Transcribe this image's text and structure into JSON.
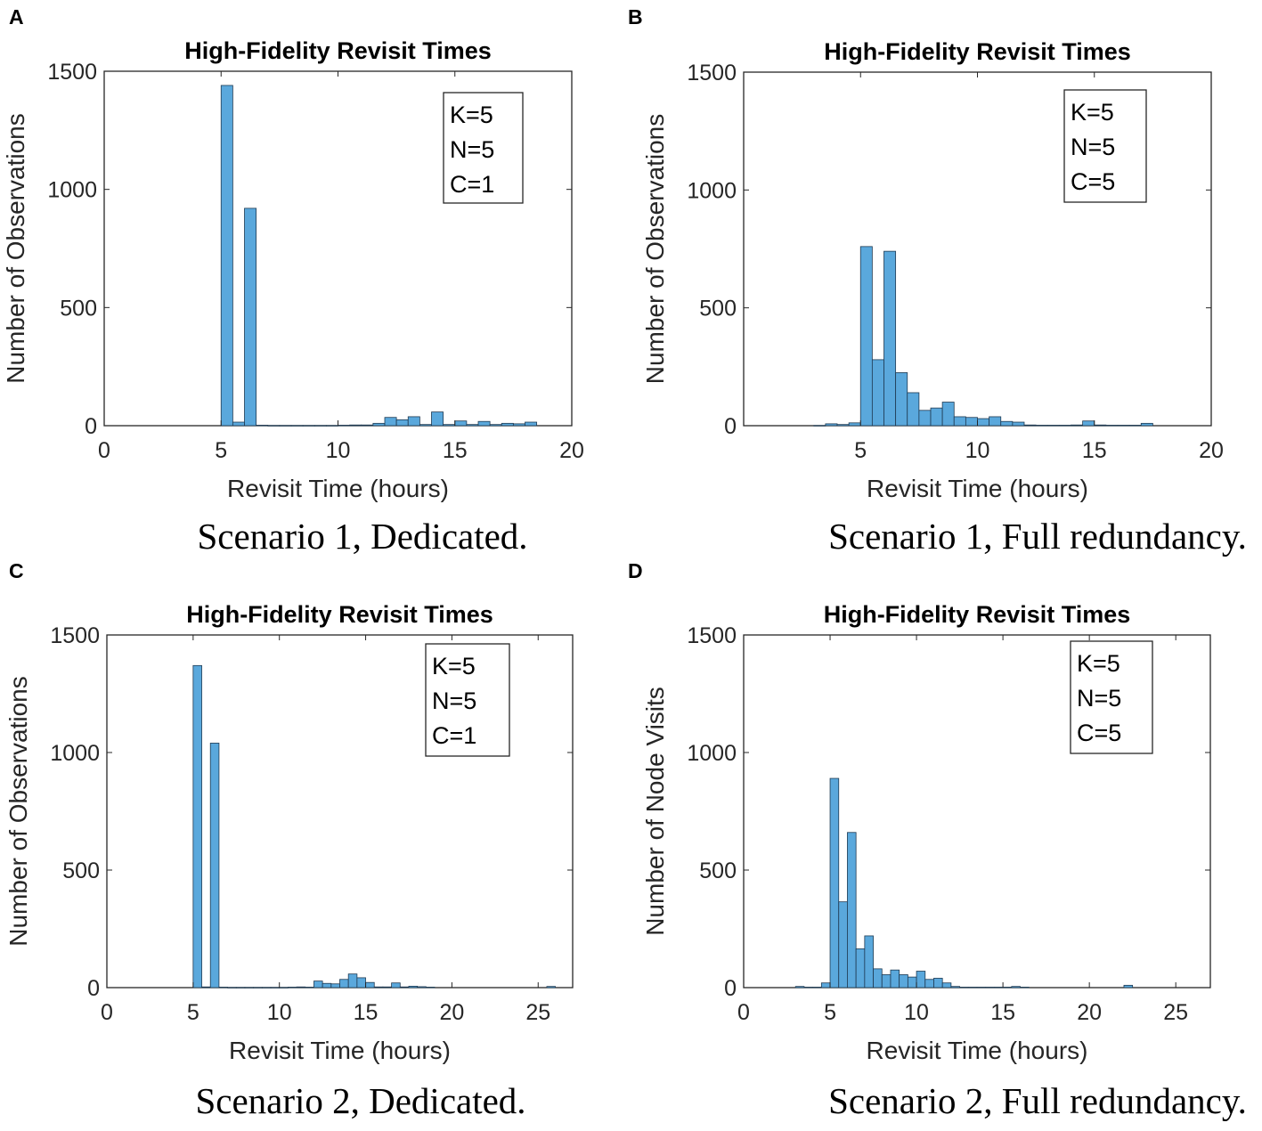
{
  "figure": {
    "panels": [
      {
        "letter": "A",
        "caption": "Scenario 1, Dedicated."
      },
      {
        "letter": "B",
        "caption": "Scenario 1, Full redundancy."
      },
      {
        "letter": "C",
        "caption": "Scenario 2, Dedicated."
      },
      {
        "letter": "D",
        "caption": "Scenario 2, Full redundancy."
      }
    ]
  },
  "colors": {
    "bar_fill": "#5aa8dc",
    "bar_edge": "#1f3a52",
    "axis": "#262626"
  },
  "chart_data": [
    {
      "type": "bar",
      "title": "High-Fidelity Revisit Times",
      "xlabel": "Revisit Time (hours)",
      "ylabel": "Number of Observations",
      "xlim": [
        0,
        20
      ],
      "ylim": [
        0,
        1500
      ],
      "xticks": [
        0,
        5,
        10,
        15,
        20
      ],
      "yticks": [
        0,
        500,
        1000,
        1500
      ],
      "legend": [
        "K=5",
        "N=5",
        "C=1"
      ],
      "legend_position": "top-right",
      "bin_width": 0.5,
      "bins": [
        {
          "x0": 5.0,
          "value": 1440
        },
        {
          "x0": 5.5,
          "value": 15
        },
        {
          "x0": 6.0,
          "value": 920
        },
        {
          "x0": 6.5,
          "value": 2
        },
        {
          "x0": 7.0,
          "value": 1
        },
        {
          "x0": 7.5,
          "value": 1
        },
        {
          "x0": 8.0,
          "value": 1
        },
        {
          "x0": 8.5,
          "value": 1
        },
        {
          "x0": 9.0,
          "value": 1
        },
        {
          "x0": 9.5,
          "value": 1
        },
        {
          "x0": 10.0,
          "value": 2
        },
        {
          "x0": 10.5,
          "value": 3
        },
        {
          "x0": 11.0,
          "value": 3
        },
        {
          "x0": 11.5,
          "value": 10
        },
        {
          "x0": 12.0,
          "value": 35
        },
        {
          "x0": 12.5,
          "value": 25
        },
        {
          "x0": 13.0,
          "value": 38
        },
        {
          "x0": 13.5,
          "value": 5
        },
        {
          "x0": 14.0,
          "value": 58
        },
        {
          "x0": 14.5,
          "value": 5
        },
        {
          "x0": 15.0,
          "value": 20
        },
        {
          "x0": 15.5,
          "value": 5
        },
        {
          "x0": 16.0,
          "value": 18
        },
        {
          "x0": 16.5,
          "value": 5
        },
        {
          "x0": 17.0,
          "value": 10
        },
        {
          "x0": 17.5,
          "value": 8
        },
        {
          "x0": 18.0,
          "value": 15
        }
      ]
    },
    {
      "type": "bar",
      "title": "High-Fidelity Revisit Times",
      "xlabel": "Revisit Time (hours)",
      "ylabel": "Number of Observations",
      "xlim": [
        0,
        20
      ],
      "ylim": [
        0,
        1500
      ],
      "xticks": [
        5,
        10,
        15,
        20
      ],
      "yticks": [
        0,
        500,
        1000,
        1500
      ],
      "legend": [
        "K=5",
        "N=5",
        "C=5"
      ],
      "legend_position": "top-right",
      "bin_width": 0.5,
      "bins": [
        {
          "x0": 3.0,
          "value": 1
        },
        {
          "x0": 3.5,
          "value": 8
        },
        {
          "x0": 4.0,
          "value": 5
        },
        {
          "x0": 4.5,
          "value": 12
        },
        {
          "x0": 5.0,
          "value": 760
        },
        {
          "x0": 5.5,
          "value": 280
        },
        {
          "x0": 6.0,
          "value": 740
        },
        {
          "x0": 6.5,
          "value": 225
        },
        {
          "x0": 7.0,
          "value": 140
        },
        {
          "x0": 7.5,
          "value": 65
        },
        {
          "x0": 8.0,
          "value": 75
        },
        {
          "x0": 8.5,
          "value": 100
        },
        {
          "x0": 9.0,
          "value": 38
        },
        {
          "x0": 9.5,
          "value": 35
        },
        {
          "x0": 10.0,
          "value": 30
        },
        {
          "x0": 10.5,
          "value": 38
        },
        {
          "x0": 11.0,
          "value": 18
        },
        {
          "x0": 11.5,
          "value": 15
        },
        {
          "x0": 12.0,
          "value": 3
        },
        {
          "x0": 12.5,
          "value": 2
        },
        {
          "x0": 13.0,
          "value": 2
        },
        {
          "x0": 13.5,
          "value": 2
        },
        {
          "x0": 14.0,
          "value": 3
        },
        {
          "x0": 14.5,
          "value": 20
        },
        {
          "x0": 15.0,
          "value": 3
        },
        {
          "x0": 15.5,
          "value": 2
        },
        {
          "x0": 16.0,
          "value": 2
        },
        {
          "x0": 16.5,
          "value": 2
        },
        {
          "x0": 17.0,
          "value": 10
        }
      ]
    },
    {
      "type": "bar",
      "title": "High-Fidelity Revisit Times",
      "xlabel": "Revisit Time (hours)",
      "ylabel": "Number of Observations",
      "xlim": [
        0,
        27
      ],
      "ylim": [
        0,
        1500
      ],
      "xticks": [
        0,
        5,
        10,
        15,
        20,
        25
      ],
      "yticks": [
        0,
        500,
        1000,
        1500
      ],
      "legend": [
        "K=5",
        "N=5",
        "C=1"
      ],
      "legend_position": "top-right",
      "bin_width": 0.5,
      "bins": [
        {
          "x0": 5.0,
          "value": 1370
        },
        {
          "x0": 5.5,
          "value": 3
        },
        {
          "x0": 6.0,
          "value": 1040
        },
        {
          "x0": 6.5,
          "value": 2
        },
        {
          "x0": 7.0,
          "value": 1
        },
        {
          "x0": 7.5,
          "value": 1
        },
        {
          "x0": 8.0,
          "value": 1
        },
        {
          "x0": 8.5,
          "value": 1
        },
        {
          "x0": 9.0,
          "value": 1
        },
        {
          "x0": 9.5,
          "value": 1
        },
        {
          "x0": 10.0,
          "value": 1
        },
        {
          "x0": 10.5,
          "value": 2
        },
        {
          "x0": 11.0,
          "value": 3
        },
        {
          "x0": 11.5,
          "value": 2
        },
        {
          "x0": 12.0,
          "value": 28
        },
        {
          "x0": 12.5,
          "value": 18
        },
        {
          "x0": 13.0,
          "value": 16
        },
        {
          "x0": 13.5,
          "value": 35
        },
        {
          "x0": 14.0,
          "value": 58
        },
        {
          "x0": 14.5,
          "value": 42
        },
        {
          "x0": 15.0,
          "value": 22
        },
        {
          "x0": 15.5,
          "value": 3
        },
        {
          "x0": 16.0,
          "value": 3
        },
        {
          "x0": 16.5,
          "value": 20
        },
        {
          "x0": 17.0,
          "value": 3
        },
        {
          "x0": 17.5,
          "value": 6
        },
        {
          "x0": 18.0,
          "value": 4
        },
        {
          "x0": 18.5,
          "value": 2
        },
        {
          "x0": 25.5,
          "value": 5
        }
      ]
    },
    {
      "type": "bar",
      "title": "High-Fidelity Revisit Times",
      "xlabel": "Revisit Time (hours)",
      "ylabel": "Number of Node Visits",
      "xlim": [
        0,
        27
      ],
      "ylim": [
        0,
        1500
      ],
      "xticks": [
        0,
        5,
        10,
        15,
        20,
        25
      ],
      "yticks": [
        0,
        500,
        1000,
        1500
      ],
      "legend": [
        "K=5",
        "N=5",
        "C=5"
      ],
      "legend_position": "top-right",
      "bin_width": 0.5,
      "bins": [
        {
          "x0": 3.0,
          "value": 5
        },
        {
          "x0": 3.5,
          "value": 2
        },
        {
          "x0": 4.0,
          "value": 2
        },
        {
          "x0": 4.5,
          "value": 20
        },
        {
          "x0": 5.0,
          "value": 890
        },
        {
          "x0": 5.5,
          "value": 365
        },
        {
          "x0": 6.0,
          "value": 660
        },
        {
          "x0": 6.5,
          "value": 165
        },
        {
          "x0": 7.0,
          "value": 220
        },
        {
          "x0": 7.5,
          "value": 80
        },
        {
          "x0": 8.0,
          "value": 55
        },
        {
          "x0": 8.5,
          "value": 75
        },
        {
          "x0": 9.0,
          "value": 55
        },
        {
          "x0": 9.5,
          "value": 45
        },
        {
          "x0": 10.0,
          "value": 70
        },
        {
          "x0": 10.5,
          "value": 35
        },
        {
          "x0": 11.0,
          "value": 40
        },
        {
          "x0": 11.5,
          "value": 20
        },
        {
          "x0": 12.0,
          "value": 5
        },
        {
          "x0": 12.5,
          "value": 2
        },
        {
          "x0": 13.0,
          "value": 2
        },
        {
          "x0": 13.5,
          "value": 2
        },
        {
          "x0": 14.0,
          "value": 2
        },
        {
          "x0": 14.5,
          "value": 2
        },
        {
          "x0": 15.0,
          "value": 2
        },
        {
          "x0": 15.5,
          "value": 5
        },
        {
          "x0": 16.0,
          "value": 2
        },
        {
          "x0": 22.0,
          "value": 10
        }
      ]
    }
  ]
}
